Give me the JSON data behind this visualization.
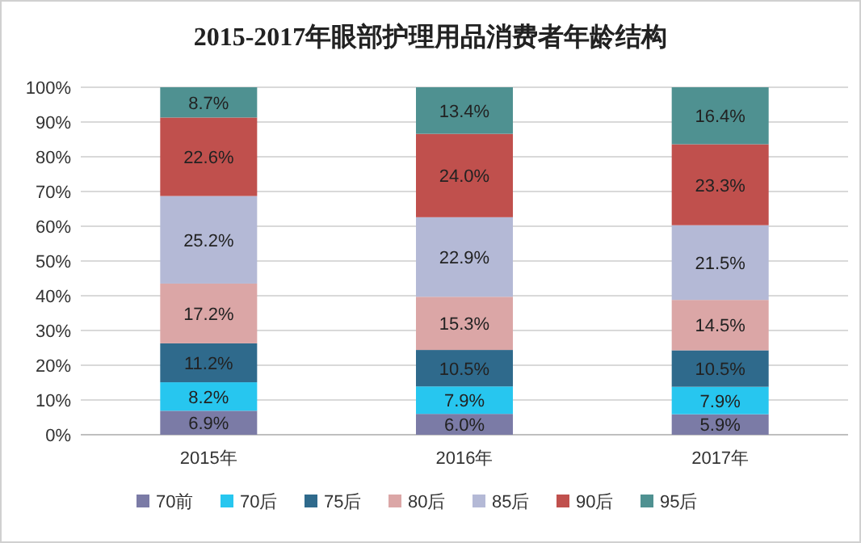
{
  "chart_data": {
    "type": "bar",
    "stacked": true,
    "title": "2015-2017年眼部护理用品消费者年龄结构",
    "categories": [
      "2015年",
      "2016年",
      "2017年"
    ],
    "series": [
      {
        "name": "70前",
        "color": "#7b7ba6",
        "values": [
          6.9,
          6.0,
          5.9
        ],
        "value_labels": [
          "6.9%",
          "6.0%",
          "5.9%"
        ]
      },
      {
        "name": "70后",
        "color": "#27c6ef",
        "values": [
          8.2,
          7.9,
          7.9
        ],
        "value_labels": [
          "8.2%",
          "7.9%",
          "7.9%"
        ]
      },
      {
        "name": "75后",
        "color": "#2f6a8c",
        "values": [
          11.2,
          10.5,
          10.5
        ],
        "value_labels": [
          "11.2%",
          "10.5%",
          "10.5%"
        ]
      },
      {
        "name": "80后",
        "color": "#dba6a6",
        "values": [
          17.2,
          15.3,
          14.5
        ],
        "value_labels": [
          "17.2%",
          "15.3%",
          "14.5%"
        ]
      },
      {
        "name": "85后",
        "color": "#b4b9d6",
        "values": [
          25.2,
          22.9,
          21.5
        ],
        "value_labels": [
          "25.2%",
          "22.9%",
          "21.5%"
        ]
      },
      {
        "name": "90后",
        "color": "#c0504d",
        "values": [
          22.6,
          24.0,
          23.3
        ],
        "value_labels": [
          "22.6%",
          "24.0%",
          "23.3%"
        ]
      },
      {
        "name": "95后",
        "color": "#4f9191",
        "values": [
          8.7,
          13.4,
          16.4
        ],
        "value_labels": [
          "8.7%",
          "13.4%",
          "16.4%"
        ]
      }
    ],
    "ylim": [
      0,
      100
    ],
    "yticks": [
      {
        "value": 0,
        "label": "0%"
      },
      {
        "value": 10,
        "label": "10%"
      },
      {
        "value": 20,
        "label": "20%"
      },
      {
        "value": 30,
        "label": "30%"
      },
      {
        "value": 40,
        "label": "40%"
      },
      {
        "value": 50,
        "label": "50%"
      },
      {
        "value": 60,
        "label": "60%"
      },
      {
        "value": 70,
        "label": "70%"
      },
      {
        "value": 80,
        "label": "80%"
      },
      {
        "value": 90,
        "label": "90%"
      },
      {
        "value": 100,
        "label": "100%"
      }
    ],
    "grid": "y",
    "legend": "bottom"
  }
}
